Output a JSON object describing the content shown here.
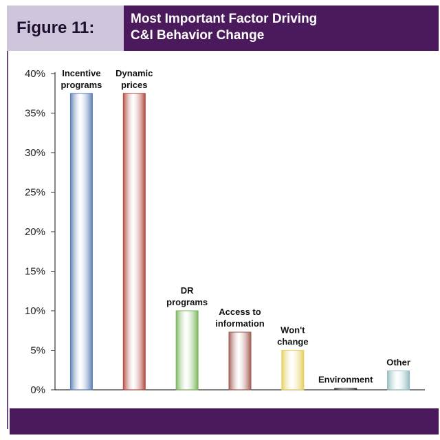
{
  "figure": {
    "label": "Figure 11:",
    "title_lines": [
      "Most Important Factor Driving",
      "C&I Behavior Change"
    ]
  },
  "chart_data": {
    "type": "bar",
    "title": "Most Important Factor Driving C&I Behavior Change",
    "categories": [
      [
        "Incentive",
        "programs"
      ],
      [
        "Dynamic",
        "prices"
      ],
      [
        "DR",
        "programs"
      ],
      [
        "Access to",
        "information"
      ],
      [
        "Won't",
        "change"
      ],
      [
        "Environment"
      ],
      [
        "Other"
      ]
    ],
    "values": [
      37.5,
      37.5,
      10,
      7.3,
      5,
      0.2,
      2.4
    ],
    "ylim": [
      0,
      40
    ],
    "yticks": [
      "0%",
      "5%",
      "10%",
      "15%",
      "20%",
      "25%",
      "30%",
      "35%",
      "40%"
    ],
    "grid": false,
    "colors": [
      "#5a7fb5",
      "#b24a42",
      "#79b55a",
      "#a25a52",
      "#e6cf5c",
      "#3a3a3a",
      "#93bcc0"
    ]
  }
}
